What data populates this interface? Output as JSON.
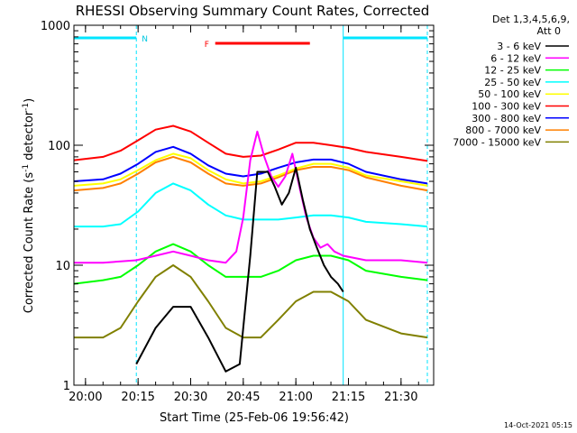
{
  "chart_data": {
    "type": "line",
    "title": "RHESSI Observing Summary Count Rates, Corrected",
    "xlabel": "Start Time (25-Feb-06 19:56:42)",
    "ylabel_main": "Corrected Count Rate (s",
    "ylabel_sup1": "-1",
    "ylabel_mid": " detector",
    "ylabel_sup2": "-1",
    "ylabel_end": ")",
    "y_scale": "log",
    "ylim": [
      1,
      1000
    ],
    "xlim_minutes": [
      -3.3,
      99.3
    ],
    "x_tick_minutes": [
      0,
      15,
      30,
      45,
      60,
      75,
      90
    ],
    "x_ticks": [
      "20:00",
      "20:15",
      "20:30",
      "20:45",
      "21:00",
      "21:15",
      "21:30"
    ],
    "y_ticks": [
      "1",
      "10",
      "100",
      "1000"
    ],
    "legend_header": "Det 1,3,4,5,6,9,",
    "legend_att": "Att 0",
    "annotations": {
      "night_label": "N",
      "flare_label": "F"
    },
    "night_intervals_minutes": [
      [
        -3.3,
        14.5
      ],
      [
        73.5,
        97.5
      ]
    ],
    "flare_interval_minutes": [
      37,
      64
    ],
    "timestamp": "14-Oct-2021 05:15",
    "series": [
      {
        "name": "3 - 6 keV",
        "color": "#000000",
        "x": [
          14.5,
          20,
          25,
          30,
          35,
          40,
          44,
          47,
          49,
          52,
          54,
          56,
          58,
          60,
          62,
          64,
          66,
          68,
          70,
          72,
          73.5
        ],
        "y": [
          1.5,
          3,
          4.5,
          4.5,
          2.5,
          1.3,
          1.5,
          12,
          60,
          60,
          45,
          32,
          40,
          65,
          35,
          20,
          14,
          10,
          8,
          7,
          6
        ]
      },
      {
        "name": "6 - 12 keV",
        "color": "#ff00ff",
        "x": [
          -3.3,
          5,
          14.5,
          20,
          25,
          30,
          35,
          40,
          43,
          45,
          47,
          49,
          51,
          53,
          55,
          57,
          59,
          61,
          63,
          65,
          67,
          69,
          71,
          73.5,
          80,
          90,
          97.5
        ],
        "y": [
          10.5,
          10.5,
          11,
          12,
          13,
          12,
          11,
          10.5,
          13,
          25,
          75,
          130,
          80,
          55,
          45,
          55,
          85,
          45,
          25,
          17,
          14,
          15,
          13,
          12,
          11,
          11,
          10.5
        ]
      },
      {
        "name": "12 - 25 keV",
        "color": "#00ff00",
        "x": [
          -3.3,
          5,
          10,
          15,
          20,
          25,
          30,
          35,
          40,
          45,
          50,
          55,
          60,
          65,
          70,
          75,
          80,
          90,
          97.5
        ],
        "y": [
          7,
          7.5,
          8,
          10,
          13,
          15,
          13,
          10,
          8,
          8,
          8,
          9,
          11,
          12,
          12,
          11,
          9,
          8,
          7.5
        ]
      },
      {
        "name": "25 - 50 keV",
        "color": "#00ffff",
        "x": [
          -3.3,
          5,
          10,
          15,
          20,
          25,
          30,
          35,
          40,
          45,
          50,
          55,
          60,
          65,
          70,
          75,
          80,
          90,
          97.5
        ],
        "y": [
          21,
          21,
          22,
          28,
          40,
          48,
          42,
          32,
          26,
          24,
          24,
          24,
          25,
          26,
          26,
          25,
          23,
          22,
          21
        ]
      },
      {
        "name": "50 - 100 keV",
        "color": "#ffff00",
        "x": [
          -3.3,
          5,
          10,
          15,
          20,
          25,
          30,
          35,
          40,
          45,
          50,
          55,
          60,
          65,
          70,
          75,
          80,
          90,
          97.5
        ],
        "y": [
          46,
          48,
          52,
          62,
          75,
          85,
          78,
          62,
          52,
          48,
          50,
          56,
          64,
          70,
          70,
          65,
          56,
          50,
          46
        ]
      },
      {
        "name": "100 - 300 keV",
        "color": "#ff0000",
        "x": [
          -3.3,
          5,
          10,
          15,
          20,
          25,
          30,
          35,
          40,
          45,
          50,
          55,
          60,
          65,
          70,
          75,
          80,
          90,
          97.5
        ],
        "y": [
          75,
          80,
          90,
          110,
          135,
          145,
          130,
          105,
          85,
          80,
          82,
          92,
          105,
          105,
          100,
          95,
          88,
          80,
          74
        ]
      },
      {
        "name": "300 - 800 keV",
        "color": "#0000ff",
        "x": [
          -3.3,
          5,
          10,
          15,
          20,
          25,
          30,
          35,
          40,
          45,
          50,
          55,
          60,
          65,
          70,
          75,
          80,
          90,
          97.5
        ],
        "y": [
          50,
          52,
          58,
          70,
          88,
          97,
          85,
          68,
          58,
          55,
          58,
          65,
          72,
          76,
          76,
          70,
          60,
          52,
          48
        ]
      },
      {
        "name": "800 - 7000 keV",
        "color": "#ff8000",
        "x": [
          -3.3,
          5,
          10,
          15,
          20,
          25,
          30,
          35,
          40,
          45,
          50,
          55,
          60,
          65,
          70,
          75,
          80,
          90,
          97.5
        ],
        "y": [
          42,
          44,
          48,
          58,
          72,
          80,
          72,
          58,
          48,
          46,
          48,
          54,
          62,
          66,
          66,
          62,
          54,
          46,
          42
        ]
      },
      {
        "name": "7000 - 15000 keV",
        "color": "#808000",
        "x": [
          -3.3,
          5,
          10,
          15,
          20,
          25,
          30,
          35,
          40,
          45,
          50,
          55,
          60,
          65,
          70,
          75,
          80,
          90,
          97.5
        ],
        "y": [
          2.5,
          2.5,
          3,
          5,
          8,
          10,
          8,
          5,
          3,
          2.5,
          2.5,
          3.5,
          5,
          6,
          6,
          5,
          3.5,
          2.7,
          2.5
        ]
      }
    ]
  }
}
